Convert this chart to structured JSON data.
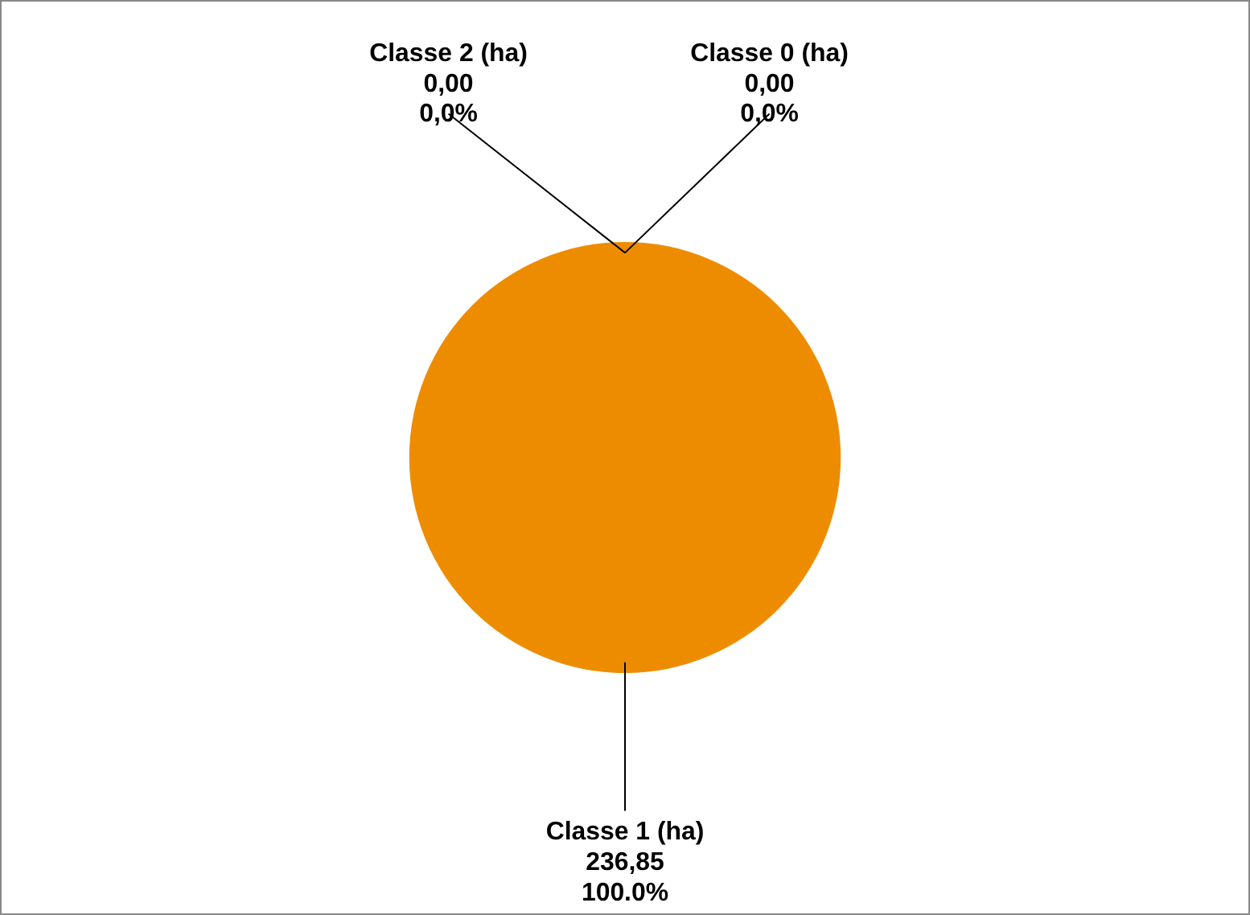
{
  "chart_data": {
    "type": "pie",
    "categories": [
      "Classe 0 (ha)",
      "Classe 1 (ha)",
      "Classe 2 (ha)"
    ],
    "values": [
      0,
      236.85,
      0
    ],
    "colors": [
      "#4f81bd",
      "#ee8c00",
      "#9bbb59"
    ],
    "value_labels": [
      "0,00\n0,0%",
      "236,85\n100.0%",
      "0,00\n0,0%"
    ],
    "legend": false
  }
}
